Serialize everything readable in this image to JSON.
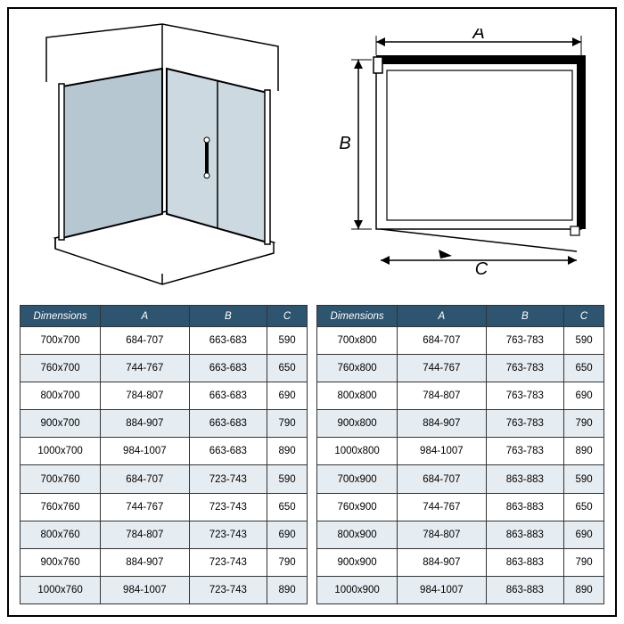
{
  "labels": {
    "A": "A",
    "B": "B",
    "C": "C"
  },
  "table_header": {
    "dimensions": "Dimensions",
    "A": "A",
    "B": "B",
    "C": "C"
  },
  "colors": {
    "header_bg": "#2d5570",
    "header_fg": "#ffffff",
    "row_even": "#e6edf2",
    "row_odd": "#ffffff",
    "border": "#333333",
    "glass": "#b6c7d1",
    "glass_light": "#cdd9e0",
    "line": "#000000"
  },
  "left_table": {
    "columns": [
      "Dimensions",
      "A",
      "B",
      "C"
    ],
    "rows": [
      [
        "700x700",
        "684-707",
        "663-683",
        "590"
      ],
      [
        "760x700",
        "744-767",
        "663-683",
        "650"
      ],
      [
        "800x700",
        "784-807",
        "663-683",
        "690"
      ],
      [
        "900x700",
        "884-907",
        "663-683",
        "790"
      ],
      [
        "1000x700",
        "984-1007",
        "663-683",
        "890"
      ],
      [
        "700x760",
        "684-707",
        "723-743",
        "590"
      ],
      [
        "760x760",
        "744-767",
        "723-743",
        "650"
      ],
      [
        "800x760",
        "784-807",
        "723-743",
        "690"
      ],
      [
        "900x760",
        "884-907",
        "723-743",
        "790"
      ],
      [
        "1000x760",
        "984-1007",
        "723-743",
        "890"
      ]
    ]
  },
  "right_table": {
    "columns": [
      "Dimensions",
      "A",
      "B",
      "C"
    ],
    "rows": [
      [
        "700x800",
        "684-707",
        "763-783",
        "590"
      ],
      [
        "760x800",
        "744-767",
        "763-783",
        "650"
      ],
      [
        "800x800",
        "784-807",
        "763-783",
        "690"
      ],
      [
        "900x800",
        "884-907",
        "763-783",
        "790"
      ],
      [
        "1000x800",
        "984-1007",
        "763-783",
        "890"
      ],
      [
        "700x900",
        "684-707",
        "863-883",
        "590"
      ],
      [
        "760x900",
        "744-767",
        "863-883",
        "650"
      ],
      [
        "800x900",
        "784-807",
        "863-883",
        "690"
      ],
      [
        "900x900",
        "884-907",
        "863-883",
        "790"
      ],
      [
        "1000x900",
        "984-1007",
        "863-883",
        "890"
      ]
    ]
  },
  "fontsize": {
    "table": 11.5,
    "label": 20
  }
}
